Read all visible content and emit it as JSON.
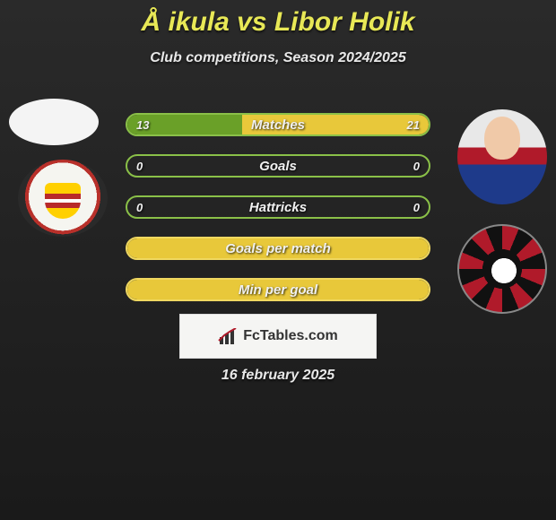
{
  "title": "Å ikula vs Libor Holik",
  "subtitle": "Club competitions, Season 2024/2025",
  "date": "16 february 2025",
  "watermark": "FcTables.com",
  "colors": {
    "accent_green": "#6aa028",
    "accent_yellow": "#e8c83a",
    "border_green": "#8ac048",
    "border_yellow": "#f0d860",
    "text_light": "#f0f0f0",
    "title_color": "#e8e856"
  },
  "stats": [
    {
      "label": "Matches",
      "left_val": "13",
      "right_val": "21",
      "left_pct": 38,
      "right_pct": 62,
      "left_color": "#6aa028",
      "right_color": "#e8c83a",
      "border_color": "#8ac048"
    },
    {
      "label": "Goals",
      "left_val": "0",
      "right_val": "0",
      "left_pct": 0,
      "right_pct": 0,
      "left_color": "#6aa028",
      "right_color": "#e8c83a",
      "border_color": "#8ac048"
    },
    {
      "label": "Hattricks",
      "left_val": "0",
      "right_val": "0",
      "left_pct": 0,
      "right_pct": 0,
      "left_color": "#6aa028",
      "right_color": "#e8c83a",
      "border_color": "#8ac048"
    },
    {
      "label": "Goals per match",
      "left_val": "",
      "right_val": "",
      "left_pct": 0,
      "right_pct": 0,
      "full_fill": true,
      "fill_color": "#e8c83a",
      "border_color": "#f0d860"
    },
    {
      "label": "Min per goal",
      "left_val": "",
      "right_val": "",
      "left_pct": 0,
      "right_pct": 0,
      "full_fill": true,
      "fill_color": "#e8c83a",
      "border_color": "#f0d860"
    }
  ]
}
